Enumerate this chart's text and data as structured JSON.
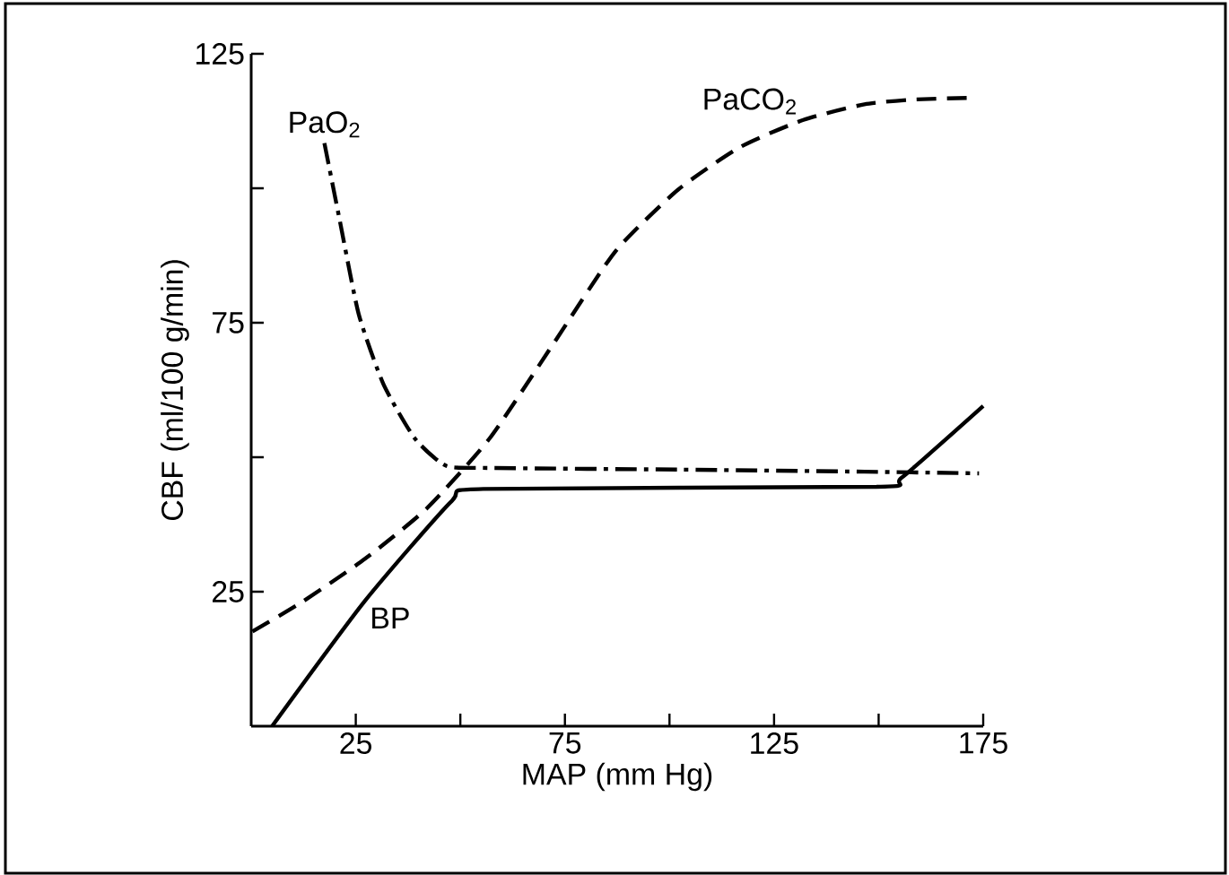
{
  "chart_data": {
    "type": "line",
    "xlabel": "MAP (mm Hg)",
    "ylabel": "CBF (ml/100 g/min)",
    "xlim": [
      0,
      175
    ],
    "ylim": [
      0,
      125
    ],
    "xticks": [
      25,
      {
        "value": 50,
        "label": null
      },
      75,
      {
        "value": 100,
        "label": null
      },
      125,
      {
        "value": 150,
        "label": null
      },
      175
    ],
    "yticks": [
      25,
      {
        "value": 50,
        "label": null
      },
      75,
      {
        "value": 100,
        "label": null
      },
      125
    ],
    "grid": false,
    "legend": false,
    "marker": "none",
    "series": [
      {
        "name": "PaO$_{2}$",
        "color": "#000000",
        "line_style": "dashdot",
        "x": [
          17.5,
          21.2,
          25.7,
          31.6,
          39.1,
          46.6,
          57,
          102,
          146.6,
          174
        ],
        "values": [
          108.4,
          93.9,
          76.6,
          63.6,
          53.5,
          48.4,
          48,
          47.7,
          47.3,
          47
        ]
      },
      {
        "name": "PaCO$_{2}$",
        "color": "#000000",
        "line_style": "dashed",
        "x": [
          0.3,
          12.2,
          27.2,
          42,
          57,
          72,
          87,
          102,
          117,
          132,
          146.6,
          158.5,
          172
        ],
        "values": [
          17.6,
          23.1,
          31.1,
          40.5,
          53.5,
          70.8,
          88.2,
          99.7,
          107.7,
          112.7,
          115.6,
          116.5,
          116.8
        ]
      },
      {
        "name": "BP",
        "color": "#000000",
        "line_style": "solid",
        "x": [
          5,
          27,
          48,
          55.5,
          149.5,
          155.5,
          175
        ],
        "values": [
          0,
          23.1,
          41.9,
          44.1,
          44.5,
          46.2,
          59.5
        ]
      }
    ]
  }
}
